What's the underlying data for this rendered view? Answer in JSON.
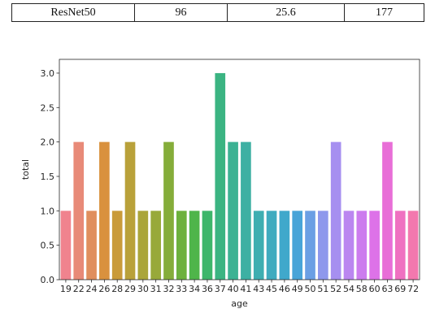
{
  "table": {
    "row": [
      "ResNet50",
      "96",
      "25.6",
      "177"
    ]
  },
  "chart_data": {
    "type": "bar",
    "title": "",
    "xlabel": "age",
    "ylabel": "total",
    "ylim": [
      0,
      3.2
    ],
    "yticks": [
      "0.0",
      "0.5",
      "1.0",
      "1.5",
      "2.0",
      "2.5",
      "3.0"
    ],
    "grid": false,
    "categories": [
      "19",
      "22",
      "24",
      "26",
      "28",
      "29",
      "30",
      "31",
      "32",
      "33",
      "34",
      "36",
      "37",
      "40",
      "41",
      "43",
      "45",
      "46",
      "49",
      "50",
      "51",
      "52",
      "54",
      "58",
      "60",
      "63",
      "69",
      "72"
    ],
    "values": [
      1,
      2,
      1,
      2,
      1,
      2,
      1,
      1,
      2,
      1,
      1,
      1,
      3,
      2,
      2,
      1,
      1,
      1,
      1,
      1,
      1,
      2,
      1,
      1,
      1,
      2,
      1,
      1
    ],
    "colors": [
      "#f0838e",
      "#e88a78",
      "#e08f5e",
      "#d9913e",
      "#c99b3a",
      "#b9a13a",
      "#aaa53a",
      "#98a93a",
      "#85ad3a",
      "#6db13d",
      "#4fb54a",
      "#3db66b",
      "#3bb482",
      "#3cb293",
      "#3db0a3",
      "#3eaeb1",
      "#3fabbf",
      "#40a8cb",
      "#48a4d8",
      "#6b9fe4",
      "#8e98ec",
      "#a68ff0",
      "#bb86f0",
      "#cc7cee",
      "#dd72e8",
      "#e86ed7",
      "#ef71c1",
      "#f378ae"
    ]
  }
}
